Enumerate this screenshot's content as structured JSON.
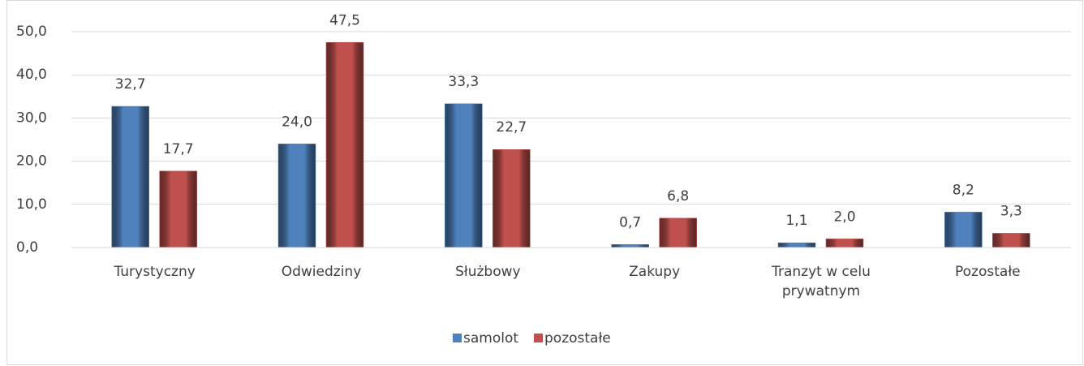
{
  "chart_data": {
    "type": "bar",
    "categories": [
      "Turystyczny",
      "Odwiedziny",
      "Służbowy",
      "Zakupy",
      "Tranzyt w celu prywatnym",
      "Pozostałe"
    ],
    "series": [
      {
        "name": "samolot",
        "color": "#4f81bd",
        "values": [
          32.7,
          24.0,
          33.3,
          0.7,
          1.1,
          8.2
        ],
        "value_labels": [
          "32,7",
          "24,0",
          "33,3",
          "0,7",
          "1,1",
          "8,2"
        ]
      },
      {
        "name": "pozostałe",
        "color": "#c0504d",
        "values": [
          17.7,
          47.5,
          22.7,
          6.8,
          2.0,
          3.3
        ],
        "value_labels": [
          "17,7",
          "47,5",
          "22,7",
          "6,8",
          "2,0",
          "3,3"
        ]
      }
    ],
    "ylim": [
      0,
      50
    ],
    "yticks": [
      {
        "value": 0,
        "label": "0,0"
      },
      {
        "value": 10,
        "label": "10,0"
      },
      {
        "value": 20,
        "label": "20,0"
      },
      {
        "value": 30,
        "label": "30,0"
      },
      {
        "value": 40,
        "label": "40,0"
      },
      {
        "value": 50,
        "label": "50,0"
      }
    ],
    "grid": true,
    "legend": "bottom"
  }
}
